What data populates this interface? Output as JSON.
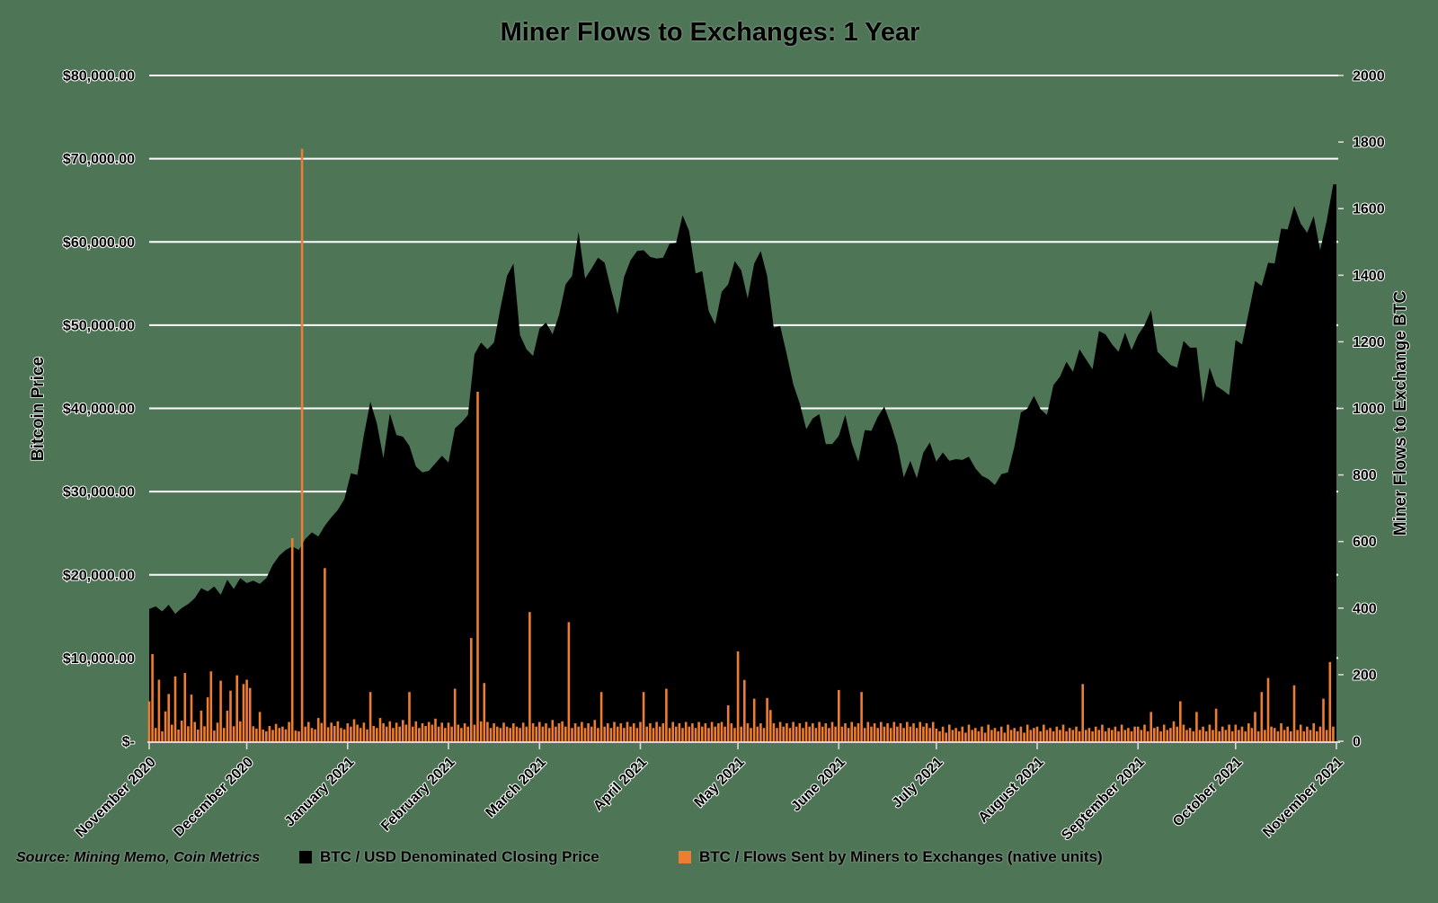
{
  "title": "Miner Flows to Exchanges: 1 Year",
  "source_note": "Source: Mining Memo, Coin Metrics",
  "legend": [
    {
      "label": "BTC / USD Denominated Closing Price",
      "color": "#000000"
    },
    {
      "label": "BTC / Flows Sent by Miners to Exchanges (native units)",
      "color": "#ED7D31"
    }
  ],
  "colors": {
    "background": "#4F7557",
    "price_area": "#000000",
    "flow_bars": "#ED7D31",
    "gridline": "#FFFFFF",
    "axis_line": "#D9D9D9"
  },
  "chart_data": {
    "type": "combo",
    "x_axis": {
      "labels": [
        "November 2020",
        "December 2020",
        "January 2021",
        "February 2021",
        "March 2021",
        "April 2021",
        "May 2021",
        "June 2021",
        "July 2021",
        "August 2021",
        "September 2021",
        "October 2021",
        "November 2021"
      ],
      "tick_days": [
        0,
        30,
        61,
        92,
        120,
        151,
        181,
        212,
        242,
        273,
        304,
        334,
        365
      ],
      "total_days": 365
    },
    "y_left": {
      "title": "Bitcoin Price",
      "min": 0,
      "max": 80000,
      "step": 10000,
      "labels": [
        "$-",
        "$10,000.00",
        "$20,000.00",
        "$30,000.00",
        "$40,000.00",
        "$50,000.00",
        "$60,000.00",
        "$70,000.00",
        "$80,000.00"
      ]
    },
    "y_right": {
      "title": "Miner Flows to Exchange BTC",
      "min": 0,
      "max": 2000,
      "step": 200,
      "labels": [
        "0",
        "200",
        "400",
        "600",
        "800",
        "1000",
        "1200",
        "1400",
        "1600",
        "1800",
        "2000"
      ]
    },
    "series": [
      {
        "name": "BTC / USD Denominated Closing Price",
        "type": "area",
        "axis": "left",
        "color": "#000000",
        "x_step_days": 2,
        "values": [
          15900,
          16200,
          15600,
          16400,
          15300,
          16000,
          16500,
          17200,
          18400,
          18000,
          18600,
          17600,
          19400,
          18300,
          19600,
          19000,
          19300,
          18900,
          19600,
          21200,
          22300,
          23000,
          23400,
          23000,
          24300,
          25100,
          24600,
          25900,
          26900,
          27800,
          29100,
          32200,
          32000,
          36800,
          40800,
          38200,
          34000,
          39400,
          36800,
          36600,
          35500,
          33000,
          32300,
          32500,
          33400,
          34300,
          33500,
          37600,
          38300,
          39200,
          46500,
          47900,
          47100,
          47900,
          52100,
          55900,
          57400,
          48800,
          47100,
          46300,
          49600,
          50300,
          48900,
          51200,
          54900,
          55900,
          61200,
          55600,
          56800,
          58100,
          57500,
          54300,
          51300,
          55800,
          57800,
          58900,
          59000,
          58200,
          58000,
          58100,
          59800,
          59900,
          63200,
          61300,
          56200,
          56500,
          51700,
          50100,
          54000,
          54900,
          57700,
          56600,
          53200,
          57400,
          58900,
          55900,
          49700,
          49900,
          46500,
          42900,
          40600,
          37500,
          38800,
          39300,
          35700,
          35700,
          36700,
          39200,
          35800,
          33600,
          37400,
          37300,
          39000,
          40200,
          38100,
          35600,
          31700,
          33700,
          31600,
          34700,
          35900,
          33600,
          34700,
          33700,
          33900,
          33800,
          34200,
          32800,
          31900,
          31500,
          30800,
          32100,
          32300,
          35400,
          39500,
          40000,
          41500,
          39900,
          39200,
          42800,
          43800,
          45600,
          44400,
          47100,
          45900,
          44700,
          49300,
          48900,
          47700,
          46800,
          49100,
          47000,
          48800,
          50000,
          51800,
          46800,
          46000,
          45200,
          44900,
          48100,
          47300,
          47300,
          40700,
          44900,
          42700,
          42200,
          41600,
          48200,
          47700,
          51500,
          55300,
          54700,
          57500,
          57400,
          61600,
          61500,
          64300,
          62200,
          61100,
          63100,
          59000,
          62500,
          66900
        ]
      },
      {
        "name": "BTC / Flows Sent by Miners to Exchanges (native units)",
        "type": "bar",
        "axis": "right",
        "color": "#ED7D31",
        "x_step_days": 1,
        "values": [
          120,
          262,
          40,
          185,
          30,
          90,
          142,
          50,
          195,
          35,
          62,
          205,
          45,
          140,
          58,
          35,
          92,
          45,
          132,
          210,
          32,
          56,
          182,
          40,
          92,
          152,
          45,
          198,
          60,
          172,
          185,
          160,
          45,
          38,
          88,
          35,
          30,
          46,
          34,
          52,
          40,
          44,
          36,
          58,
          610,
          32,
          30,
          1780,
          44,
          58,
          40,
          36,
          70,
          55,
          520,
          42,
          56,
          46,
          60,
          40,
          36,
          54,
          44,
          66,
          50,
          40,
          56,
          36,
          148,
          46,
          40,
          70,
          54,
          44,
          60,
          40,
          56,
          44,
          64,
          50,
          148,
          44,
          60,
          40,
          54,
          46,
          58,
          50,
          68,
          44,
          56,
          40,
          56,
          44,
          158,
          50,
          40,
          54,
          44,
          310,
          50,
          1050,
          60,
          175,
          58,
          40,
          54,
          44,
          40,
          56,
          44,
          40,
          54,
          44,
          40,
          56,
          44,
          388,
          54,
          44,
          58,
          44,
          54,
          40,
          64,
          44,
          54,
          60,
          44,
          358,
          40,
          54,
          44,
          58,
          40,
          54,
          44,
          64,
          40,
          148,
          44,
          54,
          40,
          58,
          44,
          54,
          40,
          58,
          44,
          54,
          40,
          58,
          148,
          44,
          54,
          40,
          58,
          44,
          54,
          158,
          40,
          58,
          44,
          54,
          40,
          58,
          44,
          54,
          40,
          58,
          44,
          54,
          40,
          58,
          44,
          54,
          58,
          44,
          108,
          54,
          40,
          270,
          44,
          184,
          54,
          40,
          128,
          44,
          54,
          40,
          130,
          94,
          54,
          40,
          58,
          44,
          54,
          40,
          58,
          44,
          54,
          40,
          58,
          44,
          54,
          40,
          58,
          44,
          54,
          40,
          58,
          44,
          154,
          44,
          54,
          40,
          58,
          44,
          54,
          148,
          40,
          58,
          44,
          54,
          40,
          58,
          44,
          54,
          40,
          58,
          44,
          54,
          40,
          58,
          44,
          54,
          40,
          58,
          44,
          54,
          40,
          58,
          38,
          30,
          44,
          26,
          50,
          34,
          40,
          30,
          44,
          26,
          50,
          34,
          40,
          30,
          44,
          26,
          50,
          34,
          40,
          30,
          44,
          26,
          50,
          34,
          40,
          30,
          44,
          26,
          50,
          34,
          40,
          44,
          30,
          50,
          34,
          40,
          30,
          44,
          34,
          50,
          30,
          40,
          34,
          44,
          30,
          172,
          34,
          40,
          30,
          44,
          34,
          50,
          30,
          40,
          34,
          44,
          30,
          50,
          34,
          40,
          30,
          44,
          44,
          34,
          50,
          30,
          88,
          40,
          44,
          30,
          50,
          34,
          40,
          60,
          44,
          120,
          50,
          34,
          40,
          30,
          88,
          34,
          44,
          30,
          50,
          34,
          98,
          30,
          44,
          34,
          50,
          30,
          50,
          34,
          44,
          30,
          54,
          40,
          88,
          30,
          148,
          34,
          190,
          44,
          40,
          30,
          54,
          34,
          44,
          30,
          168,
          34,
          50,
          30,
          44,
          34,
          54,
          30,
          44,
          128,
          34,
          238,
          44
        ]
      }
    ],
    "grid": "horizontal-white",
    "legend_position": "bottom"
  }
}
